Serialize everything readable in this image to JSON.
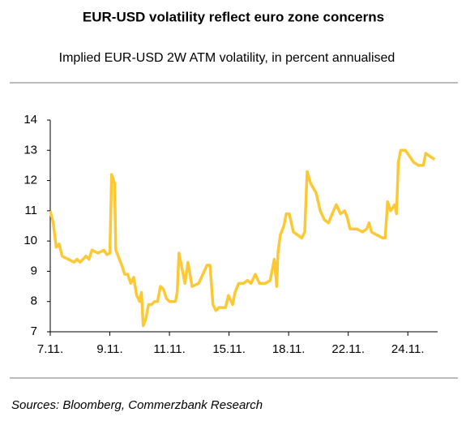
{
  "chart_data": {
    "type": "line",
    "title": "EUR-USD volatility reflect euro zone concerns",
    "subtitle": "Implied EUR-USD 2W ATM volatility, in percent annualised",
    "source": "Sources: Bloomberg, Commerzbank Research",
    "x": [
      0,
      0.5,
      1,
      1.5,
      2,
      3,
      4,
      4.5,
      5,
      6,
      6.5,
      7,
      8,
      9,
      9.5,
      10,
      10.3,
      10.8,
      11,
      12,
      12.5,
      13,
      13.5,
      14,
      14.5,
      15,
      15.3,
      15.6,
      16,
      16.5,
      17,
      17.5,
      18,
      18.5,
      19,
      19.5,
      20,
      21,
      21.3,
      21.6,
      22.6,
      23.1,
      23.8,
      24.9,
      25.6,
      26.3,
      26.8,
      27.3,
      27.8,
      28.3,
      29.4,
      29.9,
      30.6,
      31.0,
      31.6,
      32.4,
      33.1,
      33.7,
      34.4,
      35.1,
      36.1,
      36.9,
      37.6,
      38.0,
      38.2,
      38.6,
      39.2,
      39.6,
      40.1,
      40.8,
      41.5,
      42.2,
      42.7,
      43.1,
      43.7,
      44.6,
      45.3,
      46.0,
      46.7,
      47.3,
      48.0,
      48.7,
      49.4,
      49.8,
      50.3,
      51.4,
      52.4,
      53.1,
      53.5,
      53.9,
      54.8,
      55.8,
      56.2,
      56.6,
      57.1,
      57.8,
      58.1,
      58.4,
      58.8,
      59.6,
      60.3,
      61.0,
      61.8,
      62.6,
      63.0,
      63.7,
      64.5
    ],
    "series": [
      {
        "name": "EUR-USD 2W ATM volatility",
        "color": "#fcc934",
        "values": [
          11.0,
          10.6,
          9.8,
          9.9,
          9.5,
          9.4,
          9.3,
          9.4,
          9.3,
          9.5,
          9.4,
          9.7,
          9.6,
          9.7,
          9.55,
          9.6,
          12.2,
          11.9,
          9.7,
          9.2,
          8.9,
          8.9,
          8.6,
          8.8,
          8.2,
          8.0,
          8.3,
          7.2,
          7.4,
          7.9,
          7.9,
          8.0,
          8.0,
          8.5,
          8.4,
          8.1,
          8.0,
          8.0,
          8.3,
          9.6,
          8.6,
          9.3,
          8.5,
          8.6,
          8.9,
          9.2,
          9.2,
          7.9,
          7.7,
          7.8,
          7.8,
          8.2,
          7.9,
          8.3,
          8.6,
          8.6,
          8.7,
          8.6,
          8.9,
          8.6,
          8.6,
          8.7,
          9.4,
          8.5,
          9.6,
          10.2,
          10.5,
          10.9,
          10.9,
          10.3,
          10.2,
          10.1,
          10.3,
          12.3,
          11.9,
          11.6,
          11.0,
          10.7,
          10.6,
          10.9,
          11.2,
          10.9,
          11.0,
          10.8,
          10.4,
          10.4,
          10.3,
          10.4,
          10.6,
          10.3,
          10.2,
          10.1,
          10.1,
          11.3,
          11.0,
          11.2,
          10.9,
          12.6,
          13.0,
          13.0,
          12.8,
          12.6,
          12.5,
          12.5,
          12.9,
          12.8,
          12.7
        ]
      }
    ],
    "xlim": [
      0,
      65
    ],
    "xticks": [
      {
        "value": 0,
        "label": "7.11."
      },
      {
        "value": 10,
        "label": "9.11."
      },
      {
        "value": 20,
        "label": "11.11."
      },
      {
        "value": 30,
        "label": "15.11."
      },
      {
        "value": 40,
        "label": "18.11."
      },
      {
        "value": 50,
        "label": "22.11."
      },
      {
        "value": 60,
        "label": "24.11."
      }
    ],
    "ylim": [
      7,
      14
    ],
    "yticks": [
      7,
      8,
      9,
      10,
      11,
      12,
      13,
      14
    ],
    "grid": false
  }
}
